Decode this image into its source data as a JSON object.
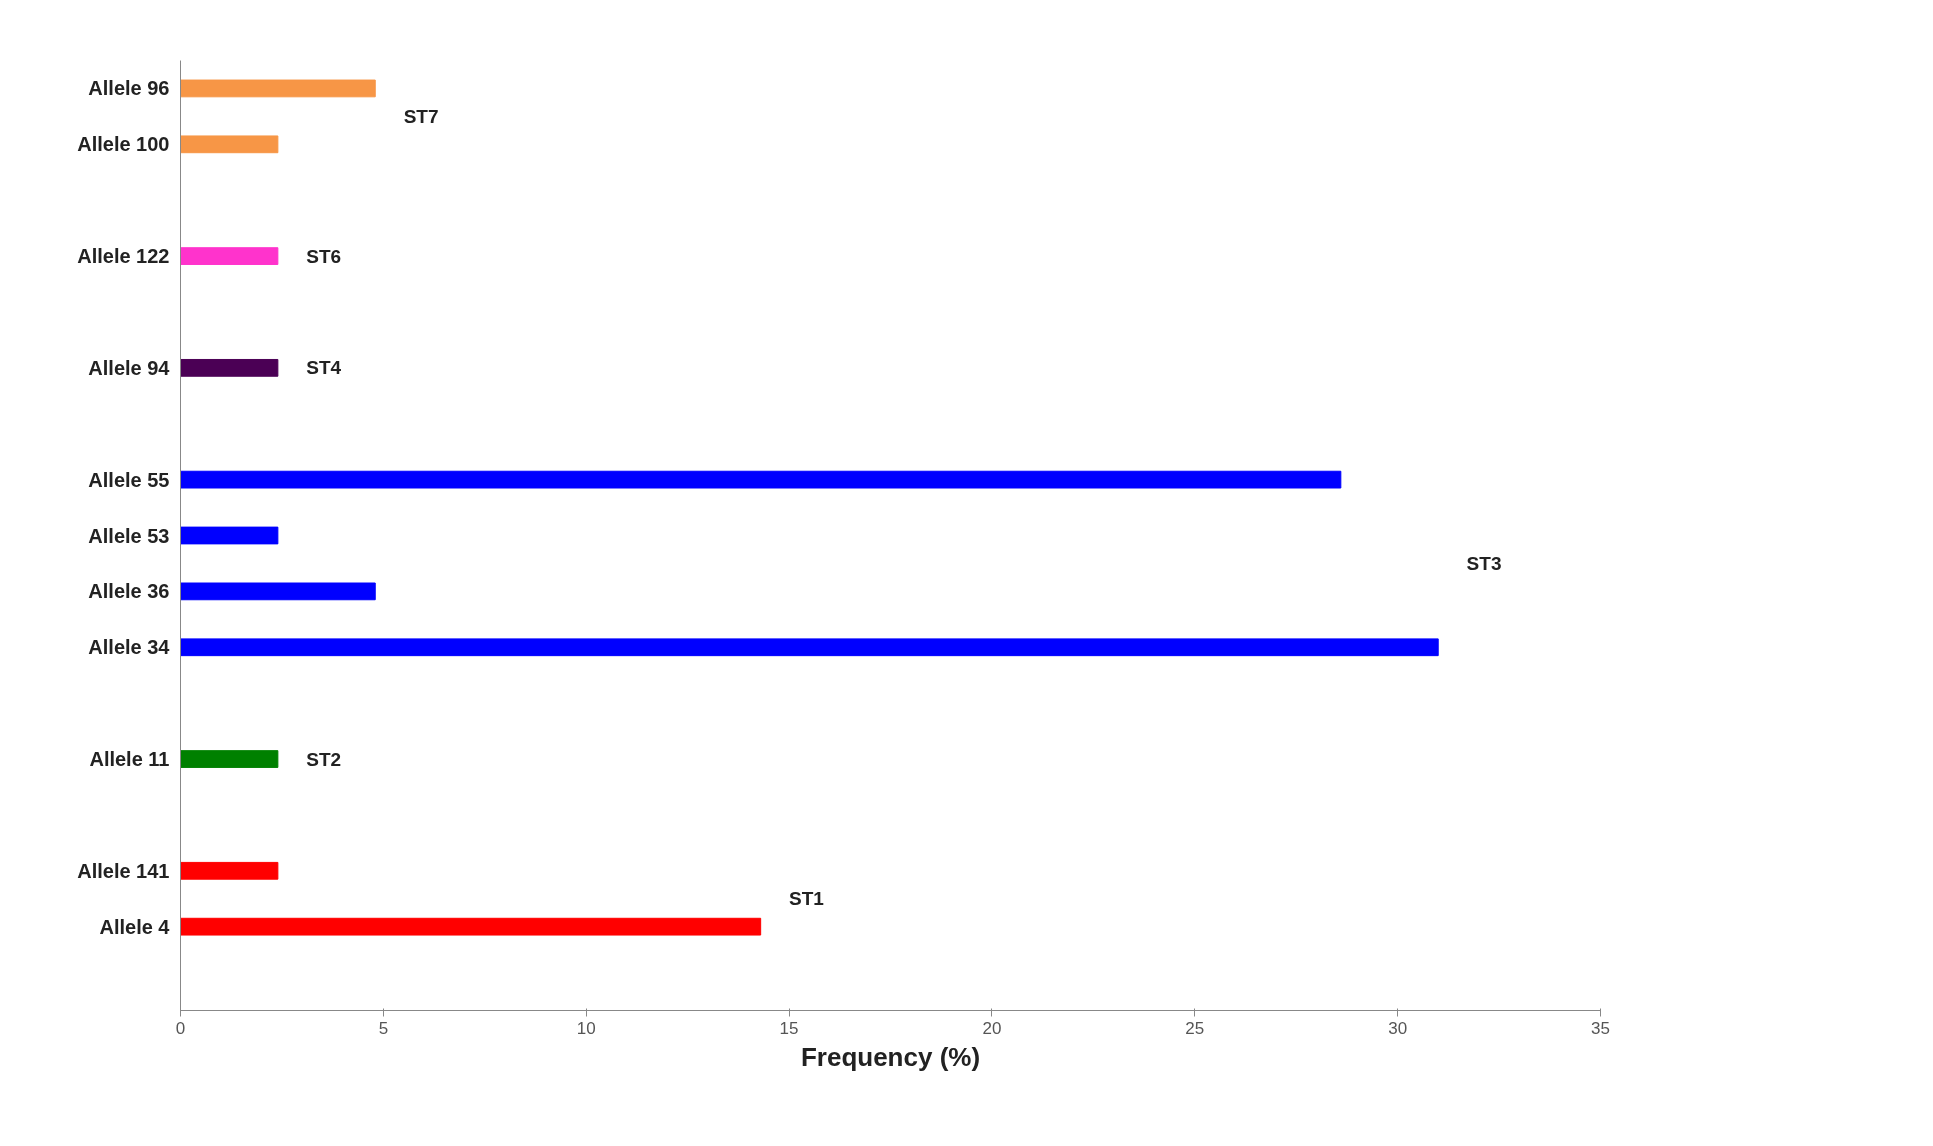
{
  "chart_data": {
    "type": "bar",
    "orientation": "horizontal",
    "xlabel": "Frequency (%)",
    "categories": [
      "Allele 96",
      "Allele 100",
      null,
      "Allele 122",
      null,
      "Allele 94",
      null,
      "Allele 55",
      "Allele 53",
      "Allele 36",
      "Allele 34",
      null,
      "Allele 11",
      null,
      "Allele 141",
      "Allele 4",
      null
    ],
    "values": [
      4.8,
      2.4,
      null,
      2.4,
      null,
      2.4,
      null,
      28.6,
      2.4,
      4.8,
      31.0,
      null,
      2.4,
      null,
      2.4,
      14.3,
      null
    ],
    "colors": [
      "#f79646",
      "#f79646",
      null,
      "#ff33cc",
      null,
      "#4b0055",
      null,
      "#0000ff",
      "#0000ff",
      "#0000ff",
      "#0000ff",
      null,
      "#008000",
      null,
      "#ff0000",
      "#ff0000",
      null
    ],
    "xlim": [
      0,
      35
    ],
    "xticks": [
      0,
      5,
      10,
      15,
      20,
      25,
      30,
      35
    ],
    "grid": false,
    "annotations": [
      "ST7",
      "ST6",
      "ST4",
      "ST3",
      "ST2",
      "ST1"
    ]
  }
}
